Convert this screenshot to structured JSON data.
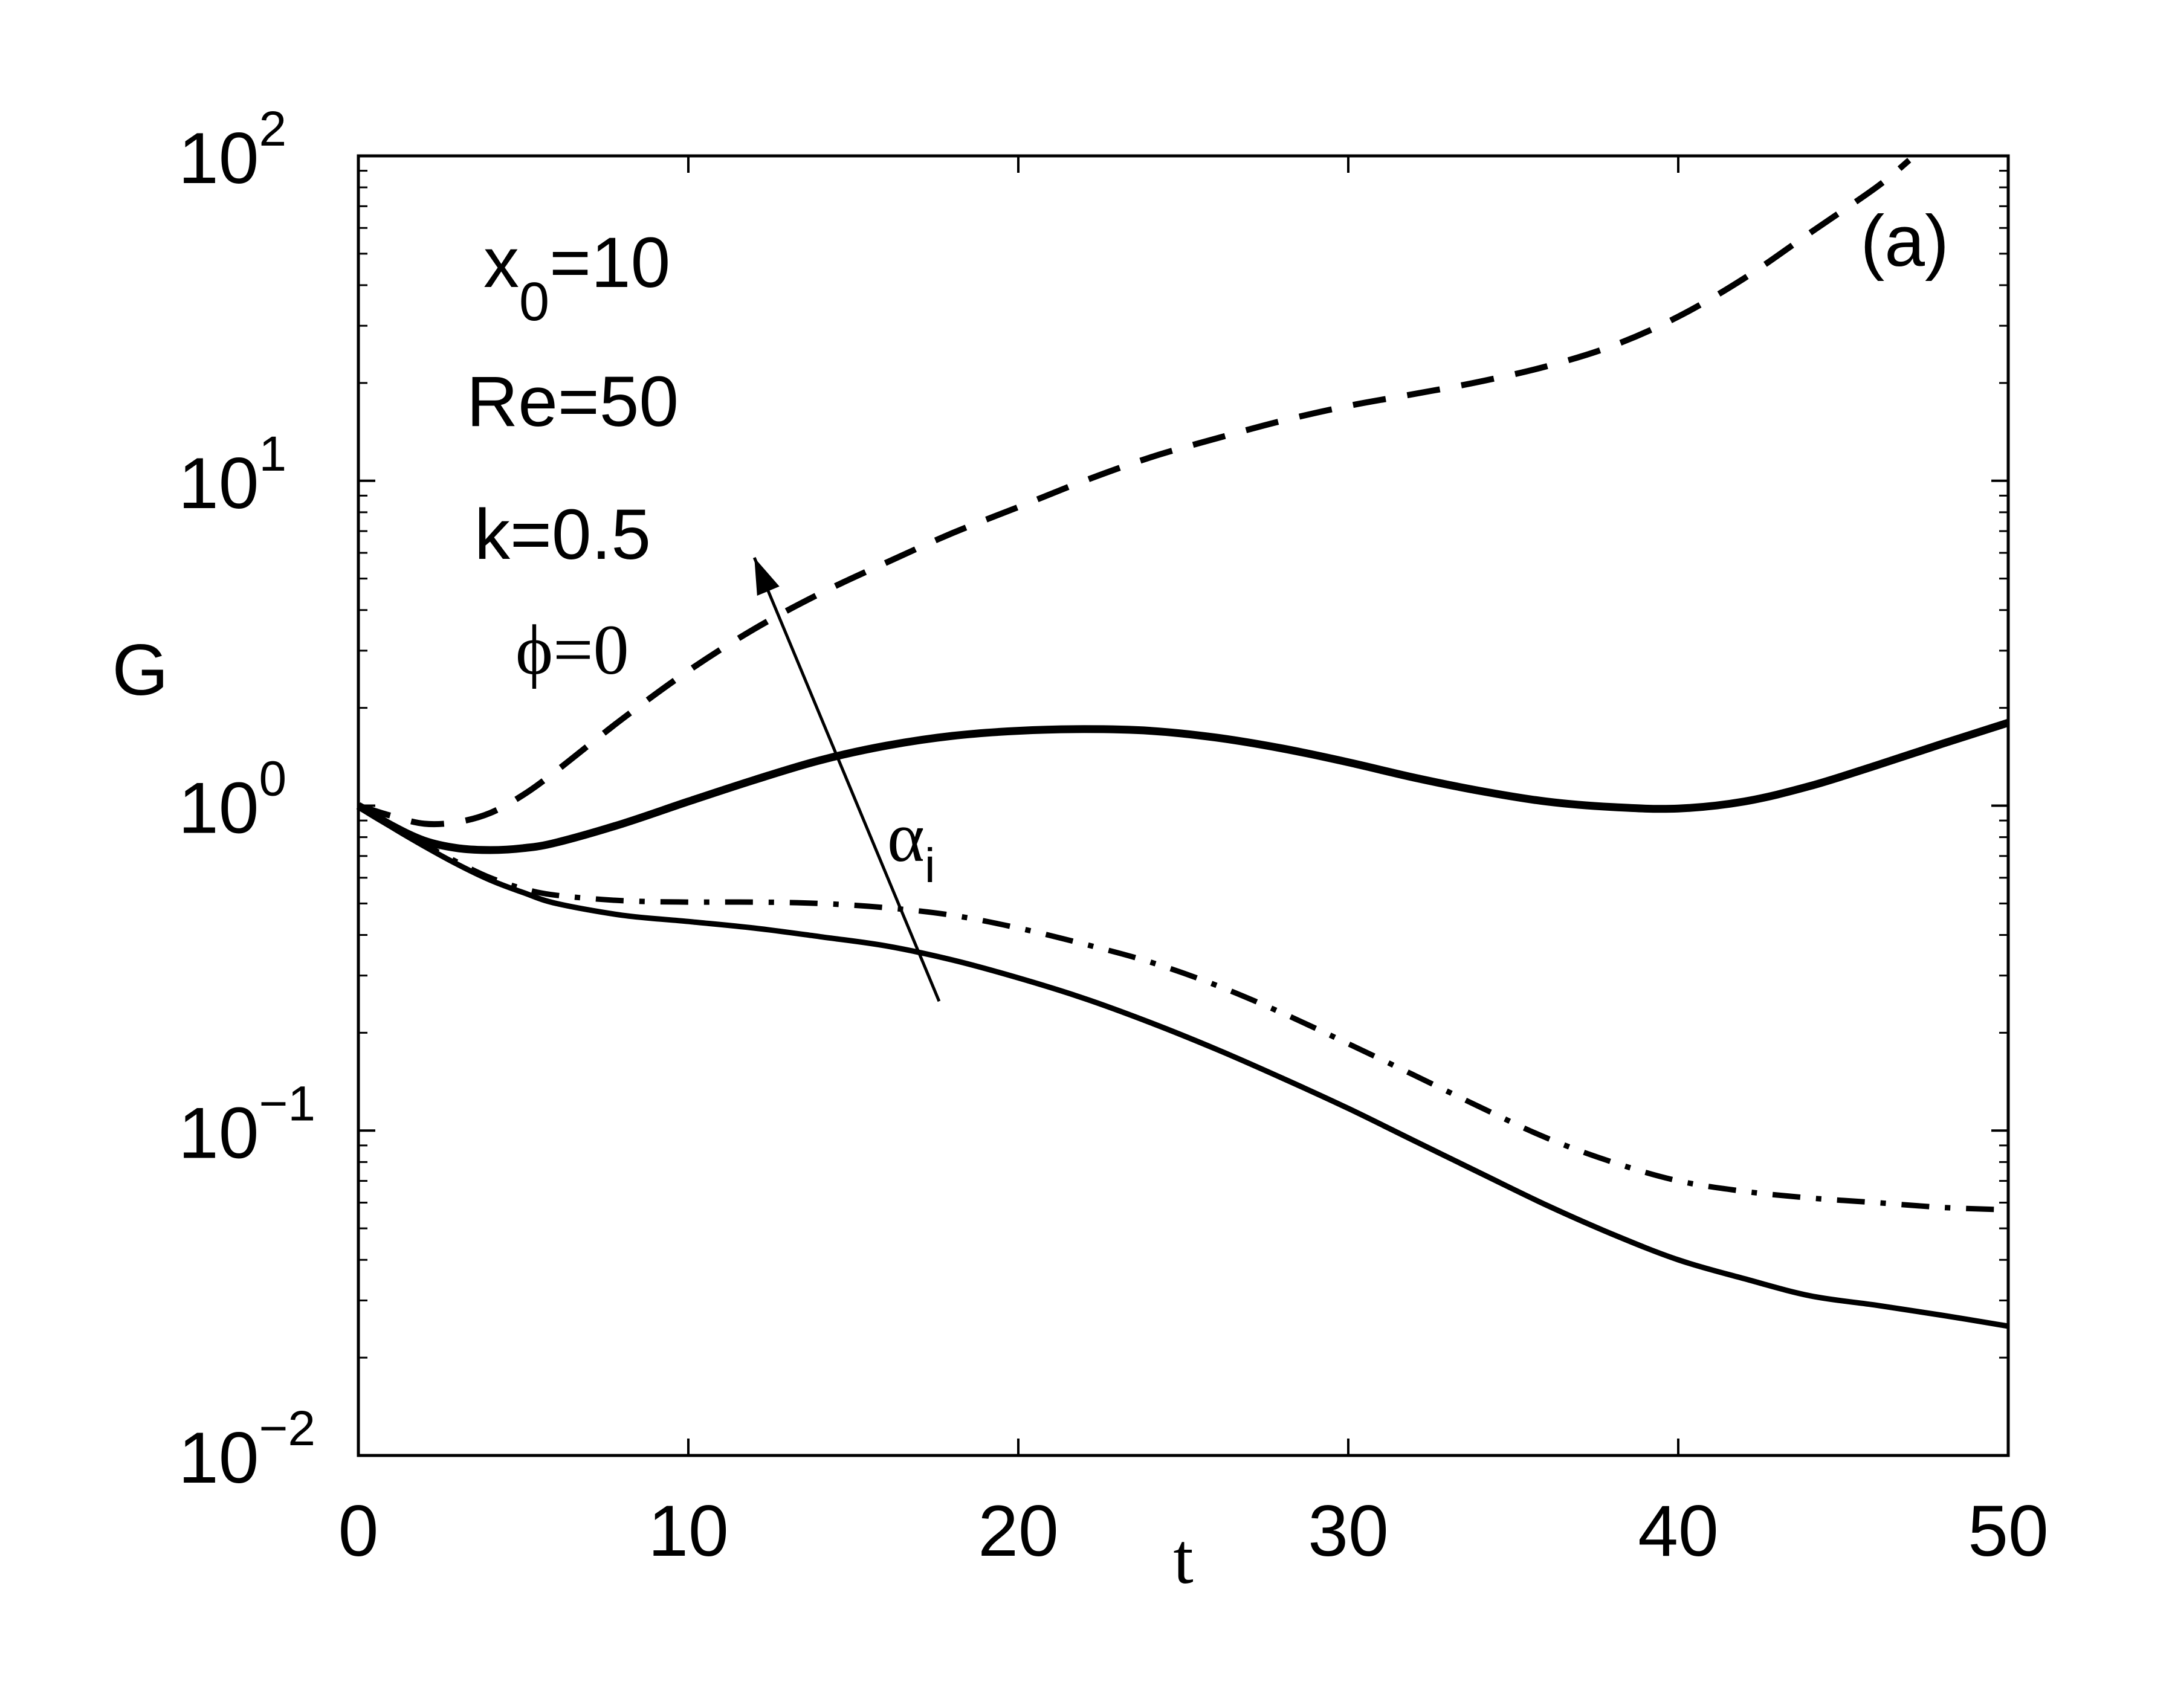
{
  "chart_data": {
    "type": "line",
    "title": "",
    "panel_label": "(a)",
    "xlabel": "t",
    "ylabel": "G",
    "xscale": "linear",
    "yscale": "log",
    "xlim": [
      0,
      50
    ],
    "ylim": [
      0.01,
      100
    ],
    "xticks": [
      0,
      10,
      20,
      30,
      40,
      50
    ],
    "xtick_labels": [
      "0",
      "10",
      "20",
      "30",
      "40",
      "50"
    ],
    "yticks": [
      {
        "value": 0.01,
        "base": "10",
        "exp": "−2"
      },
      {
        "value": 0.1,
        "base": "10",
        "exp": "−1"
      },
      {
        "value": 1,
        "base": "10",
        "exp": "0"
      },
      {
        "value": 10,
        "base": "10",
        "exp": "1"
      },
      {
        "value": 100,
        "base": "10",
        "exp": "2"
      }
    ],
    "grid": false,
    "annotations": {
      "x0": {
        "main": "x",
        "sub": "0",
        "rest": "=10"
      },
      "re": "Re=50",
      "k": "k=0.5",
      "phi": "ϕ=0",
      "alpha": {
        "main": "α",
        "sub": "i"
      }
    },
    "arrow": {
      "from": [
        17.6,
        0.25
      ],
      "to": [
        12.0,
        5.8
      ]
    },
    "series": [
      {
        "name": "thin solid (lowest αi)",
        "style": "solid",
        "x": [
          0,
          1,
          2,
          3,
          4,
          5,
          6,
          8,
          10,
          12,
          14,
          16,
          18,
          20,
          22,
          24,
          26,
          28,
          30,
          32,
          34,
          36,
          38,
          40,
          42,
          44,
          46,
          48,
          50
        ],
        "y": [
          1.0,
          0.86,
          0.75,
          0.66,
          0.59,
          0.54,
          0.5,
          0.46,
          0.44,
          0.42,
          0.395,
          0.37,
          0.335,
          0.295,
          0.255,
          0.215,
          0.178,
          0.145,
          0.117,
          0.093,
          0.074,
          0.059,
          0.048,
          0.04,
          0.035,
          0.031,
          0.029,
          0.027,
          0.025
        ]
      },
      {
        "name": "dash-dot",
        "style": "dashdot",
        "x": [
          0,
          1,
          2,
          3,
          4,
          5,
          6,
          8,
          10,
          12,
          14,
          16,
          18,
          20,
          22,
          24,
          26,
          28,
          30,
          32,
          34,
          36,
          38,
          40,
          42,
          44,
          46,
          48,
          50
        ],
        "y": [
          1.0,
          0.87,
          0.76,
          0.67,
          0.6,
          0.555,
          0.53,
          0.51,
          0.505,
          0.505,
          0.5,
          0.485,
          0.46,
          0.42,
          0.375,
          0.33,
          0.28,
          0.23,
          0.185,
          0.148,
          0.118,
          0.095,
          0.08,
          0.07,
          0.065,
          0.062,
          0.06,
          0.058,
          0.057
        ]
      },
      {
        "name": "thick solid",
        "style": "solid-thick",
        "x": [
          0,
          1,
          2,
          3,
          4,
          5,
          6,
          8,
          10,
          12,
          14,
          16,
          18,
          20,
          22,
          24,
          26,
          28,
          30,
          32,
          34,
          36,
          38,
          40,
          42,
          44,
          46,
          48,
          50
        ],
        "y": [
          1.0,
          0.87,
          0.78,
          0.74,
          0.73,
          0.74,
          0.77,
          0.88,
          1.03,
          1.2,
          1.38,
          1.53,
          1.64,
          1.7,
          1.72,
          1.7,
          1.62,
          1.5,
          1.36,
          1.22,
          1.11,
          1.03,
          0.99,
          0.98,
          1.03,
          1.15,
          1.33,
          1.55,
          1.8
        ]
      },
      {
        "name": "dashed (highest αi)",
        "style": "dashed",
        "x": [
          0,
          1,
          2,
          3,
          4,
          5,
          6,
          8,
          10,
          12,
          14,
          16,
          18,
          20,
          22,
          24,
          26,
          28,
          30,
          32,
          34,
          36,
          38,
          40,
          42,
          44,
          46,
          47
        ],
        "y": [
          1.0,
          0.93,
          0.88,
          0.89,
          0.95,
          1.08,
          1.28,
          1.85,
          2.6,
          3.5,
          4.5,
          5.6,
          6.9,
          8.3,
          10.0,
          11.8,
          13.5,
          15.3,
          17.0,
          18.5,
          20.2,
          22.5,
          26.0,
          32.0,
          42.0,
          58.0,
          80.0,
          97.0
        ]
      }
    ]
  }
}
